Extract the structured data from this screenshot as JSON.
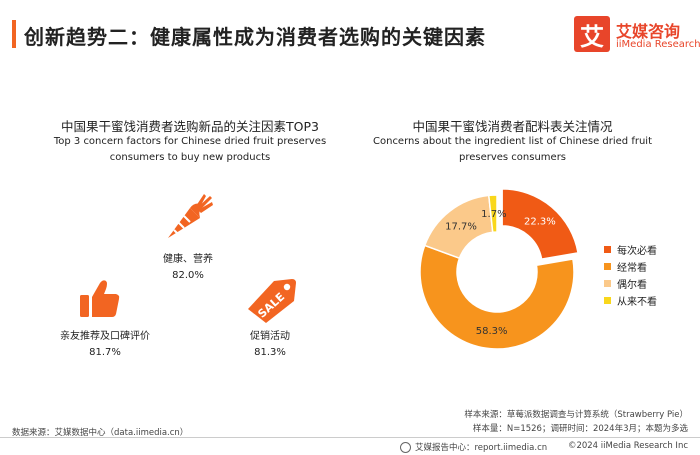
{
  "header": {
    "title": "创新趋势二：健康属性成为消费者选购的关键因素"
  },
  "logo": {
    "mark": "艾",
    "name_cn": "艾媒咨询",
    "name_en": "iiMedia Research"
  },
  "left": {
    "title": "中国果干蜜饯消费者选购新品的关注因素TOP3",
    "subtitle_line1": "Top 3 concern factors for Chinese dried fruit preserves",
    "subtitle_line2": "consumers to buy new products",
    "factors": [
      {
        "label": "健康、营养",
        "value": "82.0%",
        "icon": "carrot-icon"
      },
      {
        "label": "亲友推荐及口碑评价",
        "value": "81.7%",
        "icon": "thumbs-up-icon"
      },
      {
        "label": "促销活动",
        "value": "81.3%",
        "icon": "sale-tag-icon"
      }
    ]
  },
  "chart_data": {
    "type": "pie",
    "title": "中国果干蜜饯消费者配料表关注情况",
    "subtitle": "Concerns about the ingredient list of Chinese dried fruit preserves consumers",
    "subtitle_line1": "Concerns about the ingredient list of Chinese dried fruit",
    "subtitle_line2": "preserves consumers",
    "categories": [
      "每次必看",
      "经常看",
      "偶尔看",
      "从来不看"
    ],
    "values": [
      22.3,
      58.3,
      17.7,
      1.7
    ],
    "labels": [
      "22.3%",
      "58.3%",
      "17.7%",
      "1.7%"
    ],
    "colors": [
      "#f05a15",
      "#f7941d",
      "#fbc98a",
      "#f9d71c"
    ],
    "legend_position": "right"
  },
  "footer": {
    "source_left": "数据来源：艾媒数据中心（data.iimedia.cn）",
    "sample_source": "样本来源：草莓派数据调查与计算系统（Strawberry Pie）",
    "sample_info": "样本量：N=1526；调研时间：2024年3月；本题为多选",
    "report_center": "艾媒报告中心：report.iimedia.cn",
    "copyright": "©2024  iiMedia Research Inc"
  }
}
